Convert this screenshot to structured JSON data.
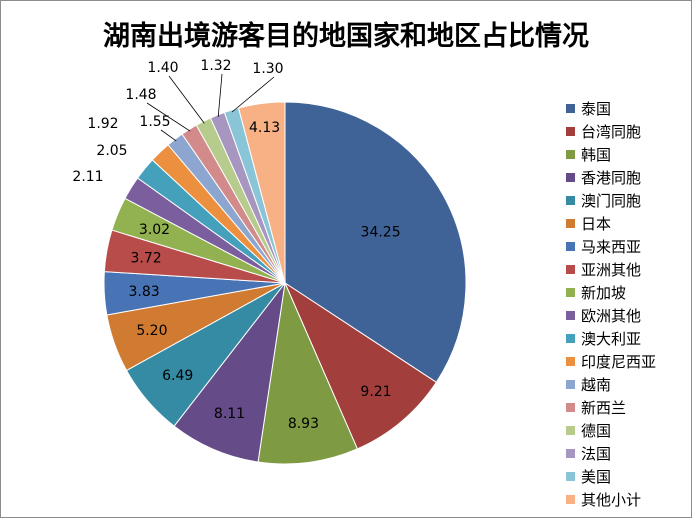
{
  "chart_data": {
    "type": "pie",
    "title": "湖南出境游客目的地国家和地区占比情况",
    "categories": [
      "泰国",
      "台湾同胞",
      "韩国",
      "香港同胞",
      "澳门同胞",
      "日本",
      "马来西亚",
      "亚洲其他",
      "新加坡",
      "欧洲其他",
      "澳大利亚",
      "印度尼西亚",
      "越南",
      "新西兰",
      "德国",
      "法国",
      "美国",
      "其他小计"
    ],
    "values": [
      34.25,
      9.21,
      8.93,
      8.11,
      6.49,
      5.2,
      3.83,
      3.72,
      3.02,
      2.11,
      2.05,
      1.92,
      1.55,
      1.48,
      1.4,
      1.32,
      1.3,
      4.13
    ],
    "value_labels": [
      "34.25",
      "9.21",
      "8.93",
      "8.11",
      "6.49",
      "5.20",
      "3.83",
      "3.72",
      "3.02",
      "2.11",
      "2.05",
      "1.92",
      "1.55",
      "1.48",
      "1.40",
      "1.32",
      "1.30",
      "4.13"
    ],
    "colors": [
      "#3F6397",
      "#A23E3B",
      "#7E9A42",
      "#654B87",
      "#368BA4",
      "#D07B31",
      "#4873B5",
      "#B74C4A",
      "#92B150",
      "#7B5E9D",
      "#44A0BB",
      "#EC8F3F",
      "#8DA6CF",
      "#D28B8A",
      "#B6CB8C",
      "#A796C0",
      "#8AC5D7",
      "#F7B184"
    ],
    "legend_position": "right"
  }
}
